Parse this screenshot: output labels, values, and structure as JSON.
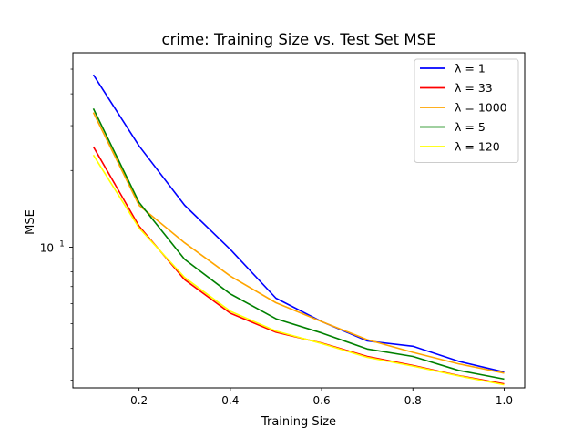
{
  "chart_data": {
    "type": "line",
    "title": "crime: Training Size vs. Test Set MSE",
    "xlabel": "Training Size",
    "ylabel": "MSE",
    "yscale": "log",
    "xlim": [
      0.055,
      1.045
    ],
    "ylim": [
      2.8,
      58
    ],
    "grid": false,
    "legend_position": "top-right",
    "x_ticks": [
      {
        "value": 0.2,
        "label": "0.2"
      },
      {
        "value": 0.4,
        "label": "0.4"
      },
      {
        "value": 0.6,
        "label": "0.6"
      },
      {
        "value": 0.8,
        "label": "0.8"
      },
      {
        "value": 1.0,
        "label": "1.0"
      }
    ],
    "y_major_ticks": [
      {
        "value": 10,
        "base": "10",
        "exp": "1"
      }
    ],
    "y_minor_ticks": [
      3,
      4,
      5,
      6,
      7,
      8,
      9,
      20,
      30,
      40,
      50
    ],
    "x": [
      0.1,
      0.2,
      0.3,
      0.4,
      0.5,
      0.6,
      0.7,
      0.8,
      0.9,
      1.0
    ],
    "series": [
      {
        "name": "λ = 1",
        "color": "#0000ff",
        "values": [
          47.5,
          25.0,
          14.6,
          9.8,
          6.3,
          5.1,
          4.28,
          4.08,
          3.56,
          3.23
        ]
      },
      {
        "name": "λ = 33",
        "color": "#ff0000",
        "values": [
          24.8,
          12.1,
          7.45,
          5.5,
          4.63,
          4.2,
          3.72,
          3.43,
          3.13,
          2.9
        ]
      },
      {
        "name": "λ = 1000",
        "color": "#ffa500",
        "values": [
          33.8,
          14.6,
          10.4,
          7.7,
          6.05,
          5.1,
          4.33,
          3.86,
          3.48,
          3.2
        ]
      },
      {
        "name": "λ = 5",
        "color": "#008000",
        "values": [
          35.0,
          15.0,
          8.95,
          6.55,
          5.23,
          4.6,
          3.98,
          3.72,
          3.28,
          3.03
        ]
      },
      {
        "name": "λ = 120",
        "color": "#ffff00",
        "values": [
          23.0,
          11.9,
          7.6,
          5.6,
          4.68,
          4.18,
          3.69,
          3.41,
          3.12,
          2.88
        ]
      }
    ]
  }
}
